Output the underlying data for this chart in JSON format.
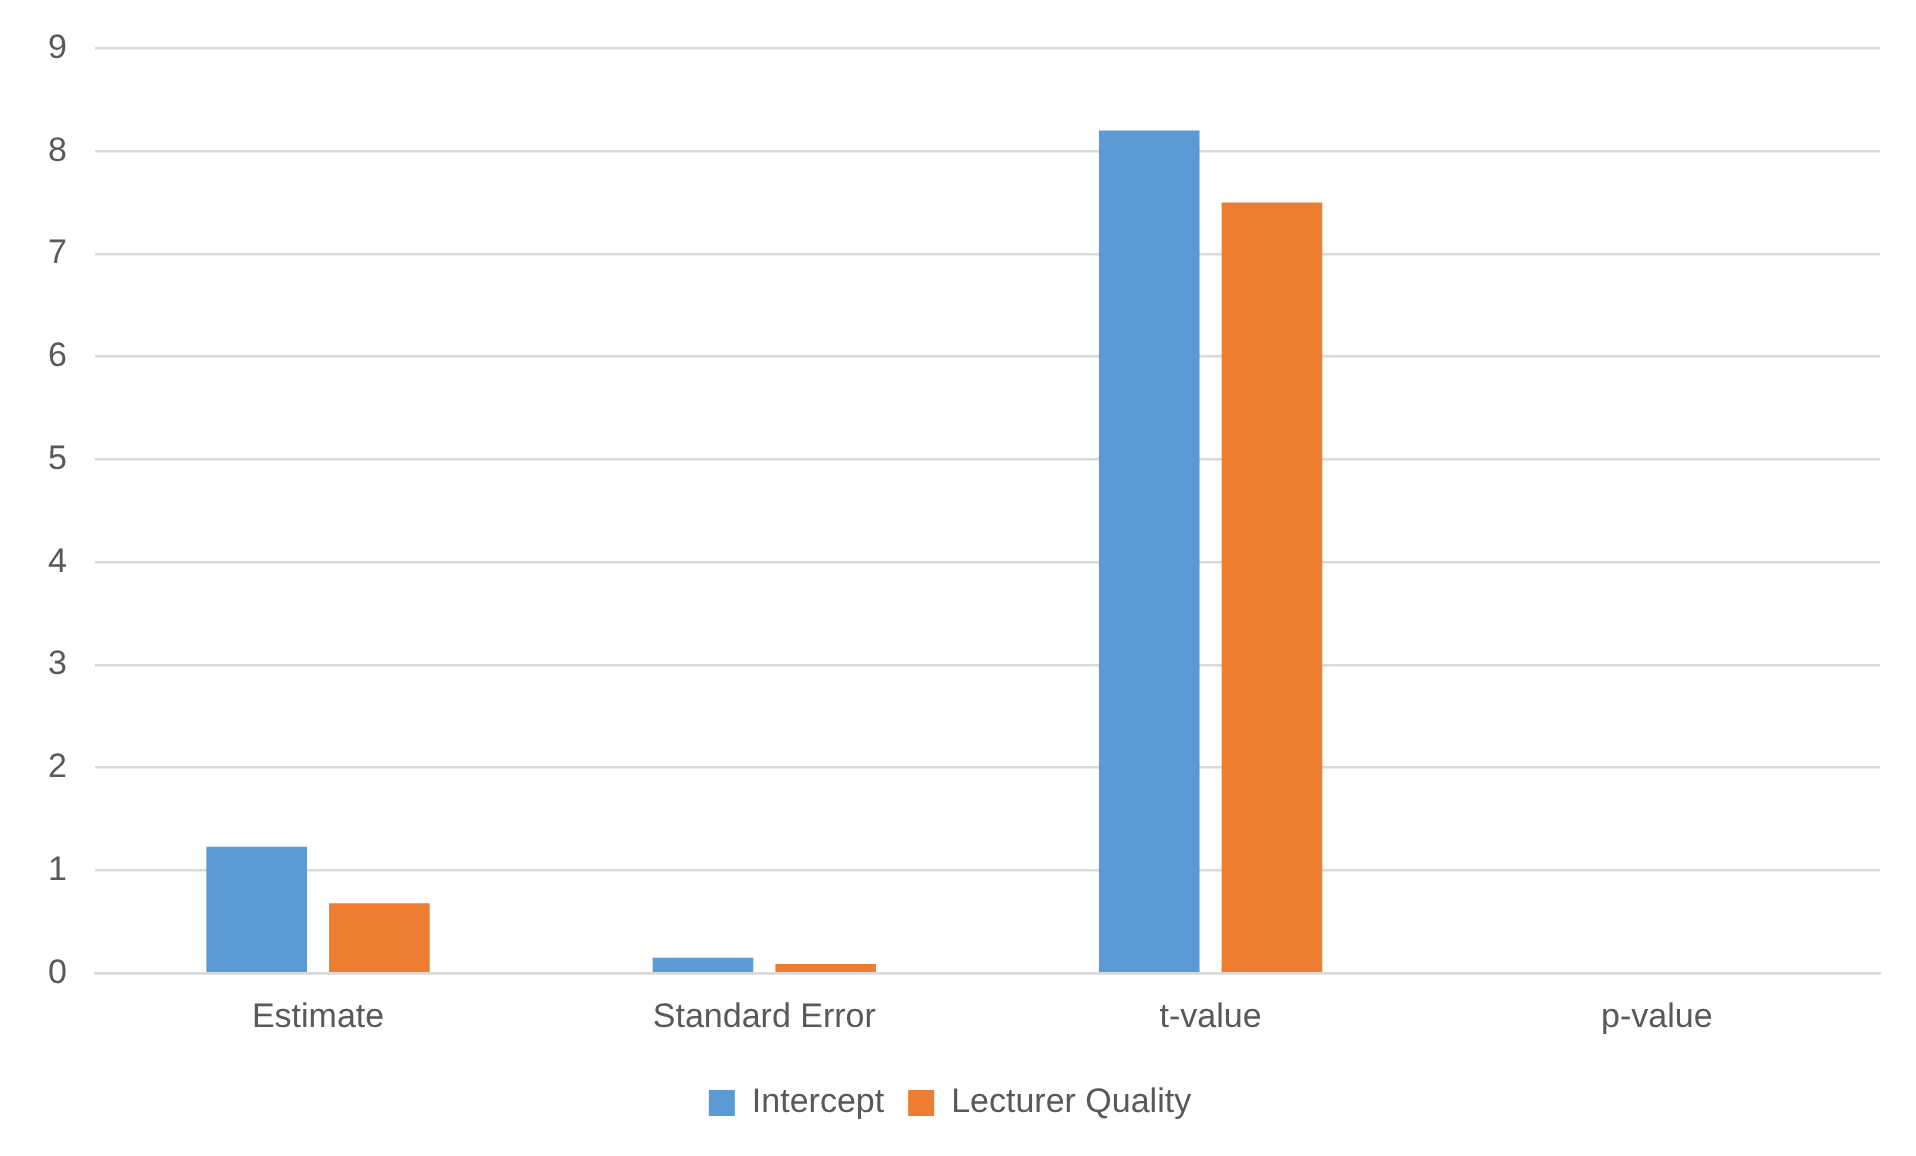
{
  "chart_data": {
    "type": "bar",
    "categories": [
      "Estimate",
      "Standard Error",
      "t-value",
      "p-value"
    ],
    "series": [
      {
        "name": "Intercept",
        "color": "#5b9bd5",
        "values": [
          1.23,
          0.15,
          8.2,
          0
        ]
      },
      {
        "name": "Lecturer Quality",
        "color": "#ed7d31",
        "values": [
          0.68,
          0.09,
          7.5,
          0
        ]
      }
    ],
    "ylim": [
      0,
      9
    ],
    "yticks": [
      0,
      1,
      2,
      3,
      4,
      5,
      6,
      7,
      8,
      9
    ],
    "grid": "y",
    "legend": "bottom"
  }
}
